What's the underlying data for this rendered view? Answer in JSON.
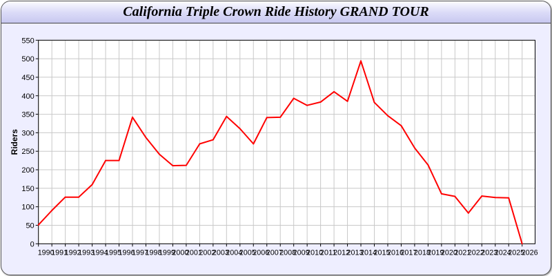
{
  "chart_data": {
    "type": "line",
    "title": "California Triple Crown Ride History GRAND TOUR",
    "xlabel": "",
    "ylabel": "Riders",
    "xlim": [
      1990,
      2026
    ],
    "ylim": [
      0,
      550
    ],
    "yticks": [
      0,
      50,
      100,
      150,
      200,
      250,
      300,
      350,
      400,
      450,
      500,
      550
    ],
    "grid": true,
    "line_color": "#ff0000",
    "x": [
      1990,
      1991,
      1992,
      1993,
      1994,
      1995,
      1996,
      1997,
      1998,
      1999,
      2000,
      2001,
      2002,
      2003,
      2004,
      2005,
      2006,
      2007,
      2008,
      2009,
      2010,
      2011,
      2012,
      2013,
      2014,
      2015,
      2016,
      2017,
      2018,
      2019,
      2020,
      2021,
      2022,
      2023,
      2024,
      2025,
      2026
    ],
    "series": [
      {
        "values": [
          51,
          90,
          126,
          126,
          160,
          225,
          225,
          342,
          287,
          242,
          211,
          212,
          270,
          281,
          344,
          311,
          270,
          341,
          342,
          393,
          374,
          383,
          411,
          385,
          494,
          382,
          346,
          319,
          259,
          213,
          135,
          128,
          83,
          129,
          125,
          124,
          0
        ]
      }
    ]
  }
}
